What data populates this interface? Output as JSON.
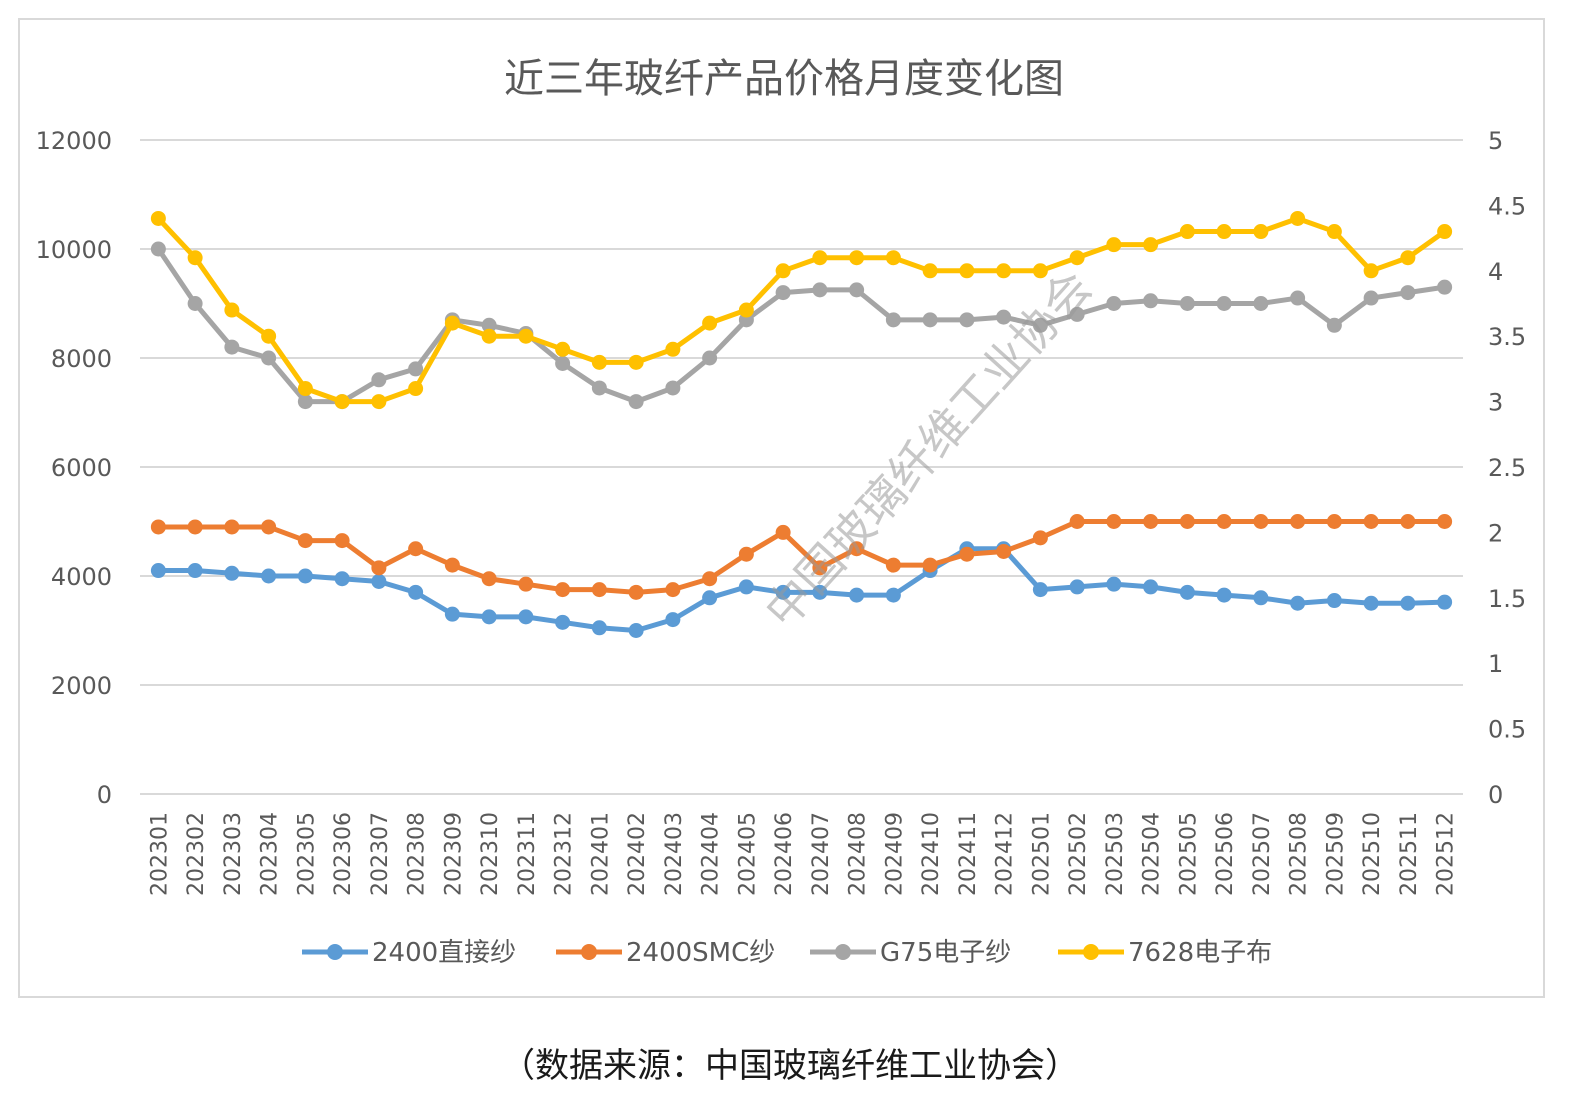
{
  "chart_data": {
    "type": "line",
    "title": "近三年玻纤产品价格月度变化图",
    "watermark": "中国玻璃纤维工业协会",
    "x": [
      "202301",
      "202302",
      "202303",
      "202304",
      "202305",
      "202306",
      "202307",
      "202308",
      "202309",
      "202310",
      "202311",
      "202312",
      "202401",
      "202402",
      "202403",
      "202404",
      "202405",
      "202406",
      "202407",
      "202408",
      "202409",
      "202410",
      "202411",
      "202412",
      "202501",
      "202502",
      "202503",
      "202504",
      "202505",
      "202506",
      "202507",
      "202508",
      "202509",
      "202510",
      "202511",
      "202512"
    ],
    "y_left": {
      "ylim": [
        0,
        12000
      ],
      "ticks": [
        "0",
        "2000",
        "4000",
        "6000",
        "8000",
        "10000",
        "12000"
      ]
    },
    "y_right": {
      "ylim": [
        0,
        5
      ],
      "ticks": [
        "0",
        "0.5",
        "1",
        "1.5",
        "2",
        "2.5",
        "3",
        "3.5",
        "4",
        "4.5",
        "5"
      ]
    },
    "grid": true,
    "legend_position": "bottom",
    "series": [
      {
        "name": "2400直接纱",
        "axis": "left",
        "color": "#5b9bd5",
        "values": [
          4100,
          4100,
          4050,
          4000,
          4000,
          3950,
          3900,
          3700,
          3300,
          3250,
          3250,
          3150,
          3050,
          3000,
          3200,
          3600,
          3800,
          3700,
          3700,
          3650,
          3650,
          4100,
          4500,
          4500,
          3750,
          3800,
          3850,
          3800,
          3700,
          3650,
          3600,
          3500,
          3550,
          3500,
          3500,
          3520
        ]
      },
      {
        "name": "2400SMC纱",
        "axis": "left",
        "color": "#ed7d31",
        "values": [
          4900,
          4900,
          4900,
          4900,
          4650,
          4650,
          4150,
          4500,
          4200,
          3950,
          3850,
          3750,
          3750,
          3700,
          3750,
          3950,
          4400,
          4800,
          4150,
          4500,
          4200,
          4200,
          4400,
          4450,
          4700,
          5000,
          5000,
          5000,
          5000,
          5000,
          5000,
          5000,
          5000,
          5000,
          5000,
          5000
        ]
      },
      {
        "name": "G75电子纱",
        "axis": "left",
        "color": "#a5a5a5",
        "values": [
          10000,
          9000,
          8200,
          8000,
          7200,
          7200,
          7600,
          7800,
          8700,
          8600,
          8450,
          7900,
          7450,
          7200,
          7450,
          8000,
          8700,
          9200,
          9250,
          9250,
          8700,
          8700,
          8700,
          8750,
          8600,
          8800,
          9000,
          9050,
          9000,
          9000,
          9000,
          9100,
          8600,
          9100,
          9200,
          9300
        ]
      },
      {
        "name": "7628电子布",
        "axis": "right",
        "color": "#ffc000",
        "values": [
          4.4,
          4.1,
          3.7,
          3.5,
          3.1,
          3.0,
          3.0,
          3.1,
          3.6,
          3.5,
          3.5,
          3.4,
          3.3,
          3.3,
          3.4,
          3.6,
          3.7,
          4.0,
          4.1,
          4.1,
          4.1,
          4.0,
          4.0,
          4.0,
          4.0,
          4.1,
          4.2,
          4.2,
          4.3,
          4.3,
          4.3,
          4.4,
          4.3,
          4.0,
          4.1,
          4.3
        ]
      }
    ]
  },
  "source_note": "（数据来源：中国玻璃纤维工业协会）"
}
